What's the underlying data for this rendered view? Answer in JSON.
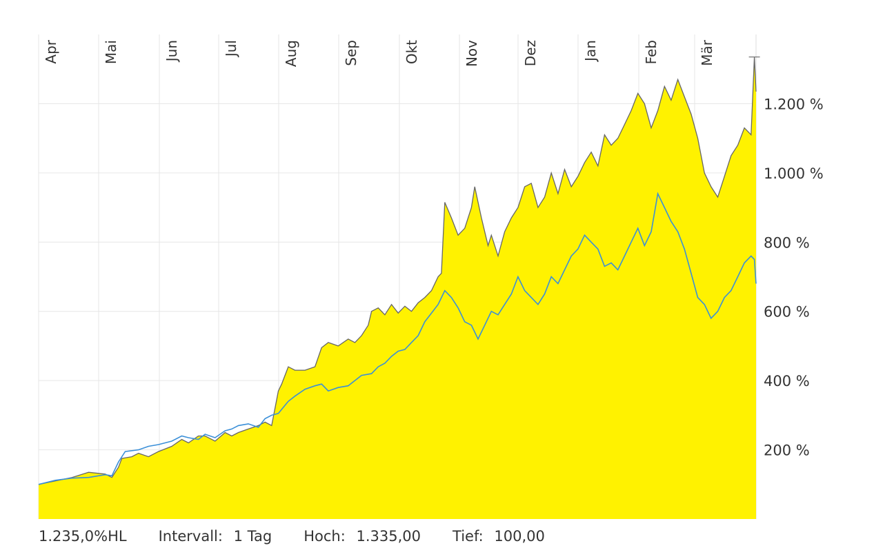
{
  "chart_data": {
    "type": "area",
    "x_ticks": [
      "Apr",
      "Mai",
      "Jun",
      "Jul",
      "Aug",
      "Sep",
      "Okt",
      "Nov",
      "Dez",
      "Jan",
      "Feb",
      "Mär"
    ],
    "y_ticks": [
      {
        "value": 200,
        "label": "200 %"
      },
      {
        "value": 400,
        "label": "400 %"
      },
      {
        "value": 600,
        "label": "600 %"
      },
      {
        "value": 800,
        "label": "800 %"
      },
      {
        "value": 1000,
        "label": "1.000 %"
      },
      {
        "value": 1200,
        "label": "1.200 %"
      }
    ],
    "ylim": [
      0,
      1400
    ],
    "grid": true,
    "colors": {
      "area_fill": "#fff200",
      "area_line": "#666666",
      "comparison_line": "#3a8fd8"
    },
    "series": [
      {
        "style": "area",
        "points": [
          [
            0,
            100
          ],
          [
            5,
            110
          ],
          [
            10,
            120
          ],
          [
            15,
            135
          ],
          [
            20,
            130
          ],
          [
            22,
            120
          ],
          [
            24,
            150
          ],
          [
            25,
            175
          ],
          [
            28,
            180
          ],
          [
            30,
            190
          ],
          [
            33,
            180
          ],
          [
            36,
            195
          ],
          [
            40,
            210
          ],
          [
            43,
            230
          ],
          [
            45,
            220
          ],
          [
            48,
            240
          ],
          [
            50,
            240
          ],
          [
            53,
            225
          ],
          [
            56,
            250
          ],
          [
            58,
            240
          ],
          [
            60,
            250
          ],
          [
            63,
            260
          ],
          [
            66,
            270
          ],
          [
            68,
            280
          ],
          [
            70,
            270
          ],
          [
            72,
            370
          ],
          [
            73,
            390
          ],
          [
            75,
            440
          ],
          [
            77,
            430
          ],
          [
            80,
            430
          ],
          [
            83,
            440
          ],
          [
            85,
            495
          ],
          [
            87,
            510
          ],
          [
            90,
            500
          ],
          [
            93,
            520
          ],
          [
            95,
            510
          ],
          [
            97,
            530
          ],
          [
            99,
            560
          ],
          [
            100,
            600
          ],
          [
            102,
            610
          ],
          [
            104,
            590
          ],
          [
            106,
            620
          ],
          [
            108,
            595
          ],
          [
            110,
            615
          ],
          [
            112,
            600
          ],
          [
            114,
            625
          ],
          [
            116,
            640
          ],
          [
            118,
            660
          ],
          [
            120,
            700
          ],
          [
            121,
            710
          ],
          [
            122,
            915
          ],
          [
            124,
            870
          ],
          [
            126,
            820
          ],
          [
            128,
            840
          ],
          [
            130,
            900
          ],
          [
            131,
            960
          ],
          [
            133,
            870
          ],
          [
            135,
            790
          ],
          [
            136,
            820
          ],
          [
            138,
            760
          ],
          [
            140,
            830
          ],
          [
            142,
            870
          ],
          [
            144,
            900
          ],
          [
            146,
            960
          ],
          [
            148,
            970
          ],
          [
            150,
            900
          ],
          [
            152,
            930
          ],
          [
            154,
            1000
          ],
          [
            156,
            940
          ],
          [
            158,
            1010
          ],
          [
            160,
            960
          ],
          [
            162,
            990
          ],
          [
            164,
            1030
          ],
          [
            166,
            1060
          ],
          [
            168,
            1020
          ],
          [
            170,
            1110
          ],
          [
            172,
            1080
          ],
          [
            174,
            1100
          ],
          [
            176,
            1140
          ],
          [
            178,
            1180
          ],
          [
            180,
            1230
          ],
          [
            182,
            1200
          ],
          [
            184,
            1130
          ],
          [
            186,
            1180
          ],
          [
            188,
            1250
          ],
          [
            190,
            1210
          ],
          [
            192,
            1270
          ],
          [
            194,
            1220
          ],
          [
            196,
            1170
          ],
          [
            198,
            1100
          ],
          [
            200,
            1000
          ],
          [
            202,
            960
          ],
          [
            204,
            930
          ],
          [
            206,
            990
          ],
          [
            208,
            1050
          ],
          [
            210,
            1080
          ],
          [
            212,
            1130
          ],
          [
            214,
            1110
          ],
          [
            215,
            1335
          ],
          [
            215.5,
            1235
          ]
        ]
      },
      {
        "style": "line",
        "points": [
          [
            0,
            100
          ],
          [
            5,
            112
          ],
          [
            10,
            118
          ],
          [
            15,
            120
          ],
          [
            20,
            128
          ],
          [
            22,
            125
          ],
          [
            24,
            165
          ],
          [
            26,
            195
          ],
          [
            30,
            200
          ],
          [
            33,
            210
          ],
          [
            36,
            215
          ],
          [
            40,
            225
          ],
          [
            43,
            240
          ],
          [
            45,
            235
          ],
          [
            48,
            230
          ],
          [
            50,
            245
          ],
          [
            53,
            235
          ],
          [
            56,
            255
          ],
          [
            58,
            260
          ],
          [
            60,
            270
          ],
          [
            63,
            275
          ],
          [
            66,
            265
          ],
          [
            68,
            290
          ],
          [
            70,
            300
          ],
          [
            72,
            305
          ],
          [
            75,
            340
          ],
          [
            77,
            355
          ],
          [
            80,
            375
          ],
          [
            83,
            385
          ],
          [
            85,
            390
          ],
          [
            87,
            370
          ],
          [
            90,
            380
          ],
          [
            93,
            385
          ],
          [
            95,
            400
          ],
          [
            97,
            415
          ],
          [
            100,
            420
          ],
          [
            102,
            440
          ],
          [
            104,
            450
          ],
          [
            106,
            470
          ],
          [
            108,
            485
          ],
          [
            110,
            490
          ],
          [
            112,
            510
          ],
          [
            114,
            530
          ],
          [
            116,
            570
          ],
          [
            118,
            595
          ],
          [
            120,
            620
          ],
          [
            122,
            660
          ],
          [
            124,
            640
          ],
          [
            126,
            610
          ],
          [
            128,
            570
          ],
          [
            130,
            560
          ],
          [
            132,
            520
          ],
          [
            134,
            560
          ],
          [
            136,
            600
          ],
          [
            138,
            590
          ],
          [
            140,
            620
          ],
          [
            142,
            650
          ],
          [
            144,
            700
          ],
          [
            146,
            660
          ],
          [
            148,
            640
          ],
          [
            150,
            620
          ],
          [
            152,
            650
          ],
          [
            154,
            700
          ],
          [
            156,
            680
          ],
          [
            158,
            720
          ],
          [
            160,
            760
          ],
          [
            162,
            780
          ],
          [
            164,
            820
          ],
          [
            166,
            800
          ],
          [
            168,
            780
          ],
          [
            170,
            730
          ],
          [
            172,
            740
          ],
          [
            174,
            720
          ],
          [
            176,
            760
          ],
          [
            178,
            800
          ],
          [
            180,
            840
          ],
          [
            182,
            790
          ],
          [
            184,
            830
          ],
          [
            186,
            940
          ],
          [
            188,
            900
          ],
          [
            190,
            860
          ],
          [
            192,
            830
          ],
          [
            194,
            780
          ],
          [
            196,
            710
          ],
          [
            198,
            640
          ],
          [
            200,
            620
          ],
          [
            202,
            580
          ],
          [
            204,
            600
          ],
          [
            206,
            640
          ],
          [
            208,
            660
          ],
          [
            210,
            700
          ],
          [
            212,
            740
          ],
          [
            214,
            760
          ],
          [
            215,
            750
          ],
          [
            215.5,
            680
          ]
        ]
      }
    ]
  },
  "footer": {
    "value": "1.235,0%HL",
    "interval_label": "Intervall:",
    "interval_value": "1 Tag",
    "high_label": "Hoch:",
    "high_value": "1.335,00",
    "low_label": "Tief:",
    "low_value": "100,00"
  }
}
